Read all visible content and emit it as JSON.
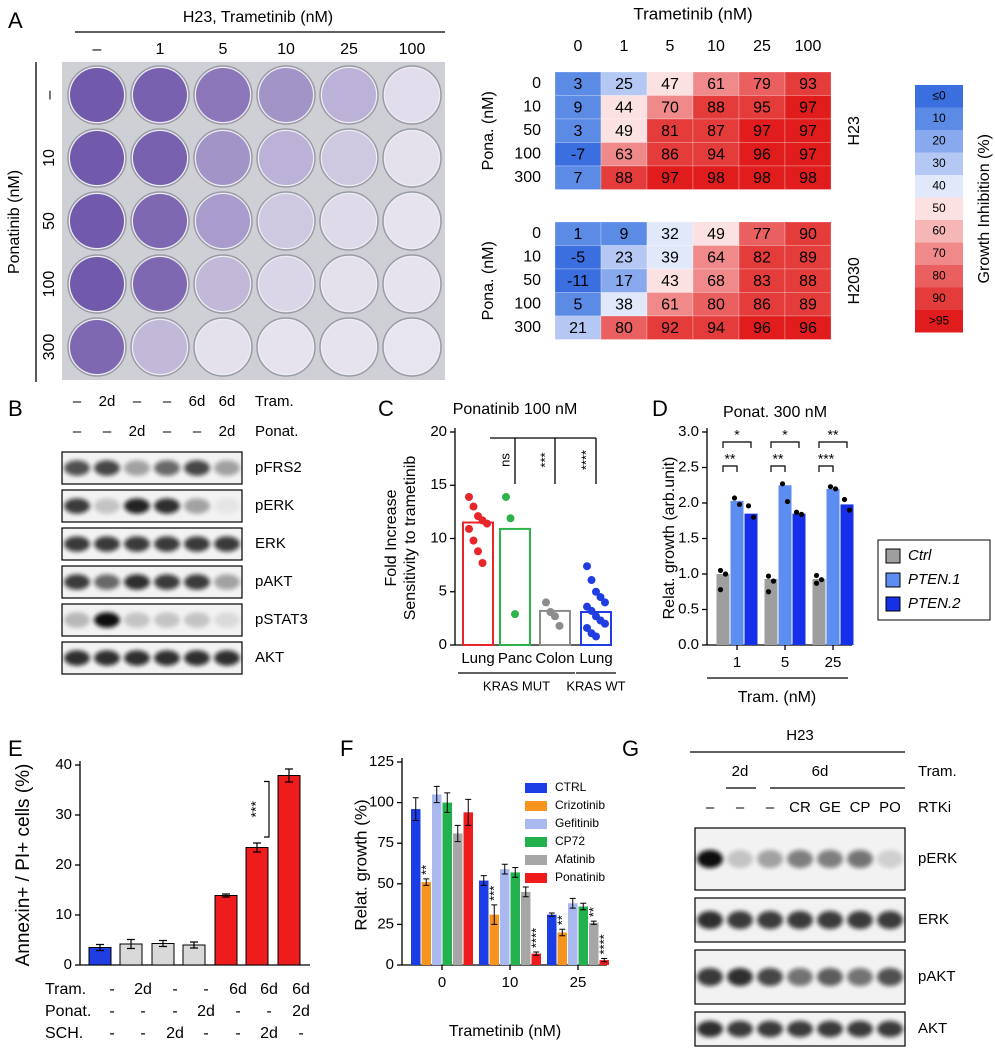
{
  "panel_labels": [
    "A",
    "B",
    "C",
    "D",
    "E",
    "F",
    "G"
  ],
  "plate": {
    "title": "H23, Trametinib (nM)",
    "columns": [
      "–",
      "1",
      "5",
      "10",
      "25",
      "100"
    ],
    "ylabel": "Ponatinib (nM)",
    "rows": [
      "–",
      "10",
      "50",
      "100",
      "300"
    ]
  },
  "blot_b": {
    "header": [
      {
        "name": "Tram.",
        "lanes": [
          "–",
          "2d",
          "–",
          "–",
          "6d",
          "6d"
        ]
      },
      {
        "name": "Ponat.",
        "lanes": [
          "–",
          "–",
          "2d",
          "–",
          "–",
          "2d"
        ]
      }
    ],
    "rows": [
      "pFRS2",
      "pERK",
      "ERK",
      "pAKT",
      "pSTAT3",
      "AKT"
    ]
  },
  "blot_g": {
    "title": "H23",
    "tram": {
      "name": "Tram.",
      "groups": [
        "2d",
        "6d"
      ]
    },
    "rtki": {
      "name": "RTKi",
      "lanes": [
        "–",
        "–",
        "–",
        "CR",
        "GE",
        "CP",
        "PO"
      ]
    },
    "rows": [
      "pERK",
      "ERK",
      "pAKT",
      "AKT"
    ]
  },
  "chart_data": [
    {
      "type": "heatmap",
      "title": "Trametinib (nM)",
      "categories": [
        "0",
        "1",
        "5",
        "10",
        "25",
        "100"
      ],
      "rows": [
        "0",
        "10",
        "50",
        "100",
        "300"
      ],
      "ylabel": "Pona. (nM)",
      "label": "H23",
      "values": [
        [
          3,
          25,
          47,
          61,
          79,
          93
        ],
        [
          9,
          44,
          70,
          88,
          95,
          97
        ],
        [
          3,
          49,
          81,
          87,
          97,
          97
        ],
        [
          -7,
          63,
          86,
          94,
          96,
          97
        ],
        [
          7,
          88,
          97,
          98,
          98,
          98
        ]
      ]
    },
    {
      "type": "heatmap",
      "rows": [
        "0",
        "10",
        "50",
        "100",
        "300"
      ],
      "ylabel": "Pona. (nM)",
      "label": "H2030",
      "values": [
        [
          1,
          9,
          32,
          49,
          77,
          90
        ],
        [
          -5,
          23,
          39,
          64,
          82,
          89
        ],
        [
          -11,
          17,
          43,
          68,
          83,
          88
        ],
        [
          5,
          38,
          61,
          80,
          86,
          89
        ],
        [
          21,
          80,
          92,
          94,
          96,
          96
        ]
      ]
    },
    {
      "type": "colorbar",
      "title": "Growth Inhibition (%)",
      "labels": [
        "≤0",
        "10",
        "20",
        "30",
        "40",
        "50",
        "60",
        "70",
        "80",
        "90",
        ">95"
      ],
      "colors": [
        "#3b6fe0",
        "#5c8be6",
        "#89a9ee",
        "#b5c8f4",
        "#e0e8fa",
        "#fbe1e1",
        "#f6b6b6",
        "#f08a8a",
        "#ea5f5f",
        "#e43b3b",
        "#e01c1c"
      ]
    },
    {
      "type": "dotbar",
      "title": "Ponatinib 100 nM",
      "ylabel": [
        "Fold Increase",
        "Sensitivity to trametinib"
      ],
      "categories": [
        "Lung",
        "Panc",
        "Colon",
        "Lung"
      ],
      "group_labels": [
        "KRAS MUT",
        "KRAS WT"
      ],
      "values": [
        11.5,
        10.9,
        3.2,
        3.1
      ],
      "colors": [
        "#e8262a",
        "#2db34a",
        "#8c8c8c",
        "#1f3de0"
      ],
      "points": [
        [
          13.9,
          13,
          12.1,
          11.7,
          11.4,
          10.9,
          9.8,
          8.8,
          7.7
        ],
        [
          13.9,
          11.9,
          2.9
        ],
        [
          4,
          3.1,
          2.7,
          1.8
        ],
        [
          7.4,
          6.1,
          5,
          4.5,
          4,
          3.6,
          3.2,
          2.7,
          2.3,
          2,
          1.6,
          1.1,
          0.8
        ]
      ],
      "bracket_labels": [
        null,
        "ns",
        "***",
        "****"
      ],
      "ylim": [
        0,
        20
      ],
      "yticks": [
        0,
        5,
        10,
        15,
        20
      ]
    },
    {
      "type": "groupedbar",
      "title": "Ponat. 300 nM",
      "ylabel": "Relat. growth (arb.unit)",
      "xlabel": "Tram. (nM)",
      "categories": [
        "1",
        "5",
        "25"
      ],
      "series": [
        {
          "name": "Ctrl",
          "color": "#9e9e9e",
          "values": [
            1.0,
            0.93,
            0.93
          ],
          "points": [
            [
              1.05,
              1,
              0.78
            ],
            [
              0.97,
              0.9,
              0.75
            ],
            [
              0.98,
              0.92,
              0.87
            ]
          ]
        },
        {
          "name": "PTEN.1",
          "color": "#5b8ef0",
          "values": [
            2.03,
            2.25,
            2.2
          ],
          "points": [
            [
              2.07,
              1.98
            ],
            [
              2.27,
              2.02
            ],
            [
              2.23,
              2.2
            ]
          ],
          "bracket_labels": [
            "**",
            "**",
            "***"
          ]
        },
        {
          "name": "PTEN.2",
          "color": "#1530e8",
          "values": [
            1.85,
            1.85,
            1.98
          ],
          "points": [
            [
              1.96,
              1.8
            ],
            [
              1.87,
              1.84
            ],
            [
              2.05,
              1.9
            ]
          ],
          "bracket_labels": [
            "*",
            "*",
            "**"
          ]
        }
      ],
      "ylim": [
        0,
        3
      ],
      "yticks": [
        {
          "value": 0,
          "label": "0.0"
        },
        0.5,
        {
          "value": 1,
          "label": "1.0"
        },
        1.5,
        {
          "value": 2,
          "label": "2.0"
        },
        2.5,
        {
          "value": 3,
          "label": "3.0"
        }
      ],
      "legend": "right"
    },
    {
      "type": "bar",
      "ylabel": "Annexin+ / PI+ cells (%)",
      "values": [
        3.5,
        4.2,
        4.3,
        4.0,
        13.9,
        23.5,
        37.9
      ],
      "errors": [
        0.6,
        0.9,
        0.6,
        0.6,
        0.3,
        0.9,
        1.3
      ],
      "colors": [
        "#1f3de0",
        "#d9d9d9",
        "#d9d9d9",
        "#d9d9d9",
        "#ee1c1c",
        "#ee1c1c",
        "#ee1c1c"
      ],
      "conditions": [
        {
          "name": "Tram.",
          "values": [
            "-",
            "2d",
            "-",
            "-",
            "6d",
            "6d",
            "6d"
          ]
        },
        {
          "name": "Ponat.",
          "values": [
            "-",
            "-",
            "-",
            "2d",
            "-",
            "-",
            "2d"
          ]
        },
        {
          "name": "SCH.",
          "values": [
            "-",
            "-",
            "2d",
            "-",
            "-",
            "2d",
            "-"
          ]
        }
      ],
      "annotation": "***",
      "ylim": [
        0,
        40
      ],
      "yticks": [
        0,
        10,
        20,
        30,
        40
      ]
    },
    {
      "type": "groupedbar",
      "ylabel": "Relat. growth (%)",
      "xlabel": "Trametinib (nM)",
      "categories": [
        "0",
        "10",
        "25"
      ],
      "series": [
        {
          "name": "CTRL",
          "color": "#1a3de6",
          "values": [
            96,
            52,
            31
          ],
          "errors": [
            7,
            3,
            1
          ]
        },
        {
          "name": "Crizotinib",
          "color": "#f7941d",
          "values": [
            51,
            31,
            20
          ],
          "errors": [
            2,
            6,
            2
          ],
          "annotations": [
            "**",
            "***",
            "**"
          ]
        },
        {
          "name": "Gefitinib",
          "color": "#a9b8ee",
          "values": [
            105,
            59,
            38
          ],
          "errors": [
            5,
            3,
            3
          ]
        },
        {
          "name": "CP72",
          "color": "#22b14c",
          "values": [
            100,
            57,
            36
          ],
          "errors": [
            6,
            3,
            2
          ]
        },
        {
          "name": "Afatinib",
          "color": "#a6a6a6",
          "values": [
            81,
            45,
            26
          ],
          "errors": [
            5,
            3,
            1
          ],
          "annotations": [
            null,
            null,
            "**"
          ]
        },
        {
          "name": "Ponatinib",
          "color": "#ee1c1c",
          "values": [
            94,
            7,
            3
          ],
          "errors": [
            8,
            1,
            1
          ],
          "annotations": [
            null,
            "****",
            "****"
          ]
        }
      ],
      "ylim": [
        0,
        125
      ],
      "yticks": [
        0,
        25,
        50,
        75,
        100,
        125
      ],
      "legend": "top-right"
    }
  ]
}
